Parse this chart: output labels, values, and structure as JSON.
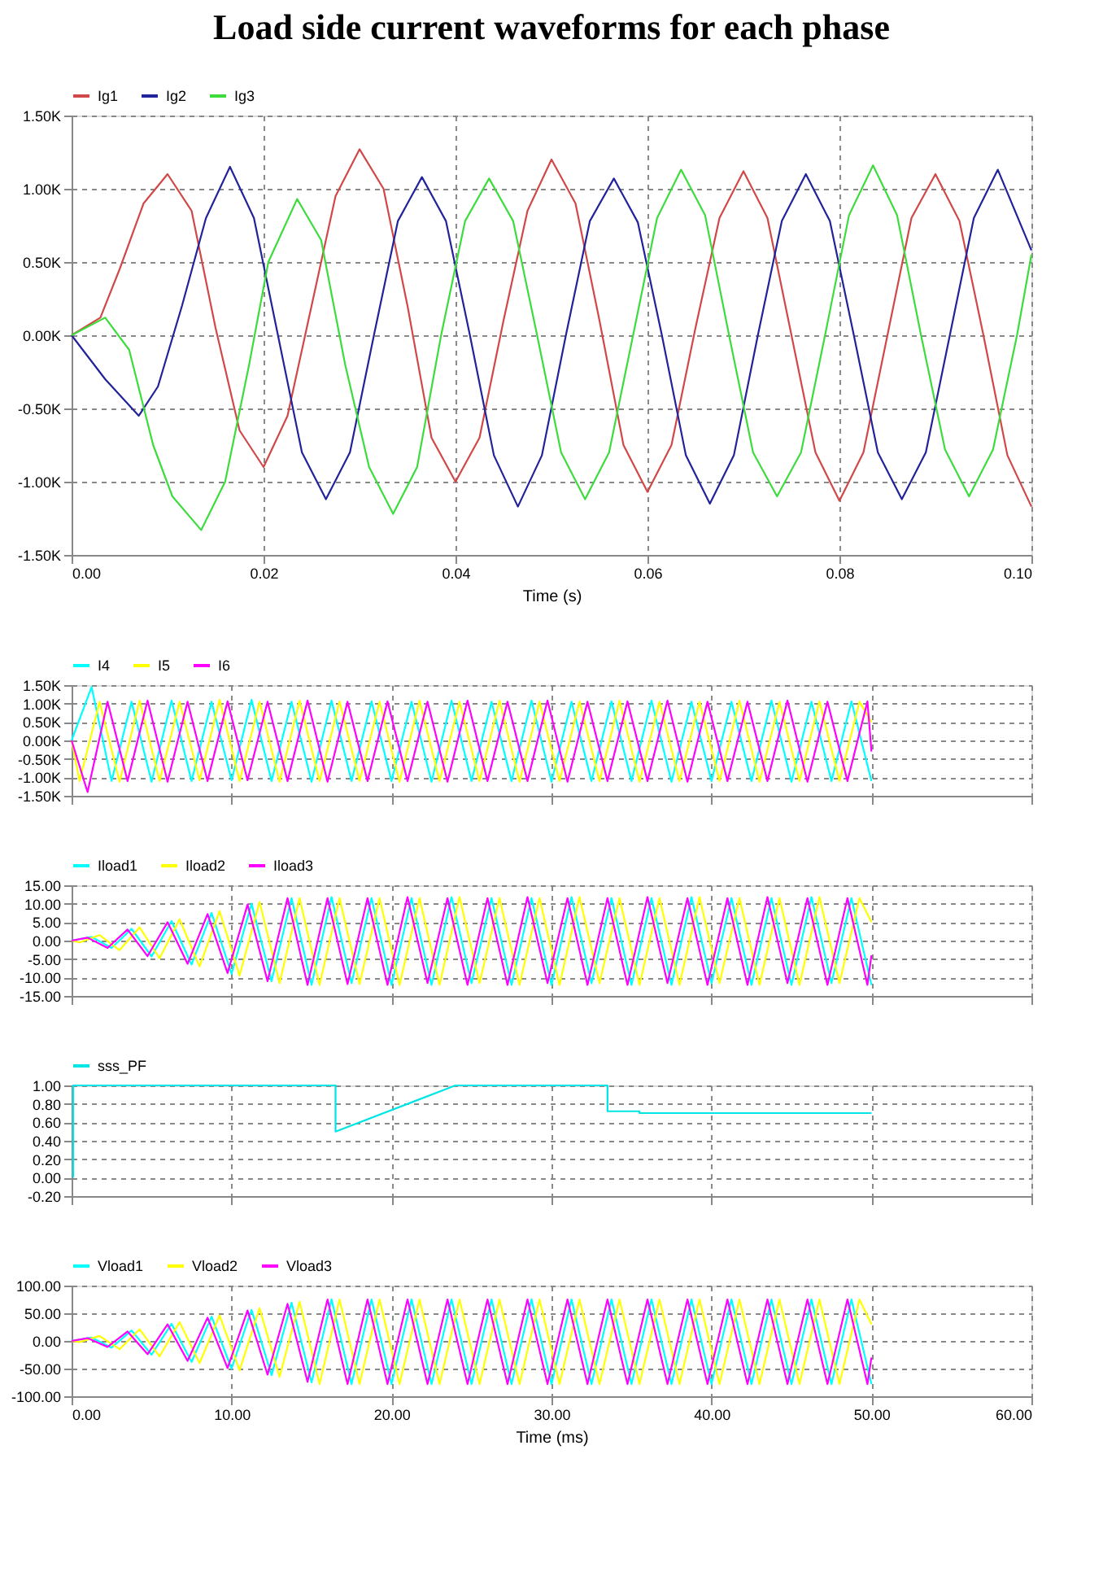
{
  "chart_data": [
    {
      "type": "line",
      "title": "Load side current waveforms for each phase",
      "xlabel": "Time (s)",
      "legend": "top left",
      "grid": true,
      "marker": "none",
      "line_style": "solid",
      "xlim": [
        0,
        0.1
      ],
      "xticks": [
        {
          "value": 0,
          "label": "0.00"
        },
        {
          "value": 0.02,
          "label": "0.02"
        },
        {
          "value": 0.04,
          "label": "0.04"
        },
        {
          "value": 0.06,
          "label": "0.06"
        },
        {
          "value": 0.08,
          "label": "0.08"
        },
        {
          "value": 0.1,
          "label": "0.10"
        }
      ],
      "ylim": [
        -1.5,
        1.5
      ],
      "yticks": [
        {
          "value": -1.5,
          "label": "-1.50K"
        },
        {
          "value": -1,
          "label": "-1.00K"
        },
        {
          "value": -0.5,
          "label": "-0.50K"
        },
        {
          "value": 0,
          "label": "0.00K"
        },
        {
          "value": 0.5,
          "label": "0.50K"
        },
        {
          "value": 1,
          "label": "1.00K"
        },
        {
          "value": 1.5,
          "label": "1.50K"
        }
      ],
      "series": [
        {
          "name": "Ig1",
          "color": "#d04848",
          "x": [
            0,
            0.003,
            0.005,
            0.0075,
            0.01,
            0.0125,
            0.015,
            0.0175,
            0.02,
            0.0225,
            0.025,
            0.0275,
            0.03,
            0.0325,
            0.035,
            0.0375,
            0.04,
            0.0425,
            0.045,
            0.0475,
            0.05,
            0.0525,
            0.055,
            0.0575,
            0.06,
            0.0625,
            0.065,
            0.0675,
            0.07,
            0.0725,
            0.075,
            0.0775,
            0.08,
            0.0825,
            0.085,
            0.0875,
            0.09,
            0.0925,
            0.095,
            0.0975,
            0.1
          ],
          "values": [
            0,
            0.12,
            0.45,
            0.9,
            1.1,
            0.85,
            0.05,
            -0.65,
            -0.9,
            -0.55,
            0.2,
            0.95,
            1.27,
            1.0,
            0.2,
            -0.7,
            -1.0,
            -0.7,
            0.1,
            0.85,
            1.2,
            0.9,
            0.1,
            -0.75,
            -1.07,
            -0.75,
            0.05,
            0.8,
            1.12,
            0.8,
            0.0,
            -0.8,
            -1.13,
            -0.8,
            0.0,
            0.8,
            1.1,
            0.78,
            0.0,
            -0.82,
            -1.17
          ]
        },
        {
          "name": "Ig2",
          "color": "#22229a",
          "x": [
            0,
            0.0035,
            0.007,
            0.009,
            0.0115,
            0.014,
            0.0165,
            0.019,
            0.0215,
            0.024,
            0.0265,
            0.029,
            0.0315,
            0.034,
            0.0365,
            0.039,
            0.0415,
            0.044,
            0.0465,
            0.049,
            0.0515,
            0.054,
            0.0565,
            0.059,
            0.0615,
            0.064,
            0.0665,
            0.069,
            0.0715,
            0.074,
            0.0765,
            0.079,
            0.0815,
            0.084,
            0.0865,
            0.089,
            0.0915,
            0.094,
            0.0965,
            0.1
          ],
          "values": [
            0,
            -0.3,
            -0.55,
            -0.35,
            0.2,
            0.8,
            1.15,
            0.8,
            0.0,
            -0.8,
            -1.12,
            -0.8,
            0.0,
            0.78,
            1.08,
            0.78,
            0.0,
            -0.82,
            -1.17,
            -0.82,
            0.0,
            0.78,
            1.07,
            0.77,
            0.0,
            -0.82,
            -1.15,
            -0.82,
            0.0,
            0.78,
            1.1,
            0.78,
            0.0,
            -0.8,
            -1.12,
            -0.8,
            0.0,
            0.8,
            1.13,
            0.58
          ]
        },
        {
          "name": "Ig3",
          "color": "#3ddc3d",
          "x": [
            0,
            0.0035,
            0.006,
            0.0085,
            0.0105,
            0.0135,
            0.016,
            0.0185,
            0.0205,
            0.0235,
            0.026,
            0.0285,
            0.031,
            0.0335,
            0.036,
            0.0385,
            0.041,
            0.0435,
            0.046,
            0.0485,
            0.051,
            0.0535,
            0.056,
            0.0585,
            0.061,
            0.0635,
            0.066,
            0.0685,
            0.071,
            0.0735,
            0.076,
            0.0785,
            0.081,
            0.0835,
            0.086,
            0.0885,
            0.091,
            0.0935,
            0.096,
            0.0985,
            0.1
          ],
          "values": [
            0,
            0.12,
            -0.1,
            -0.75,
            -1.1,
            -1.33,
            -1.0,
            -0.2,
            0.5,
            0.93,
            0.65,
            -0.2,
            -0.9,
            -1.22,
            -0.9,
            0.0,
            0.78,
            1.07,
            0.78,
            0.0,
            -0.8,
            -1.12,
            -0.8,
            0.0,
            0.8,
            1.13,
            0.82,
            0.0,
            -0.8,
            -1.1,
            -0.8,
            0.0,
            0.82,
            1.16,
            0.82,
            0.0,
            -0.78,
            -1.1,
            -0.78,
            0.0,
            0.55
          ]
        }
      ]
    },
    {
      "type": "line",
      "legend": "top left",
      "grid": true,
      "marker": "none",
      "line_style": "solid",
      "tick_labels": "y",
      "xlim": [
        0,
        60
      ],
      "xticks": [
        0,
        10,
        20,
        30,
        40,
        50,
        60
      ],
      "ylim": [
        -1.5,
        1.5
      ],
      "yticks": [
        {
          "value": -1.5,
          "label": "-1.50K"
        },
        {
          "value": -1,
          "label": "-1.00K"
        },
        {
          "value": -0.5,
          "label": "-0.50K"
        },
        {
          "value": 0,
          "label": "0.00K"
        },
        {
          "value": 0.5,
          "label": "0.50K"
        },
        {
          "value": 1,
          "label": "1.00K"
        },
        {
          "value": 1.5,
          "label": "1.50K"
        }
      ],
      "series": [
        {
          "name": "I4",
          "color": "#00ffff",
          "x": [
            0,
            1.25,
            2.5,
            3.75,
            5,
            6.25,
            7.5,
            8.75,
            10,
            11.25,
            12.5,
            13.75,
            15,
            16.25,
            17.5,
            18.75,
            20,
            21.25,
            22.5,
            23.75,
            25,
            26.25,
            27.5,
            28.75,
            30,
            31.25,
            32.5,
            33.75,
            35,
            36.25,
            37.5,
            38.75,
            40,
            41.25,
            42.5,
            43.75,
            45,
            46.25,
            47.5,
            48.75,
            50
          ],
          "values": [
            0,
            1.45,
            -1.1,
            1.05,
            -1.12,
            1.08,
            -1.1,
            1.05,
            -1.08,
            1.1,
            -1.1,
            1.05,
            -1.12,
            1.08,
            -1.1,
            1.06,
            -1.1,
            1.05,
            -1.12,
            1.08,
            -1.1,
            1.05,
            -1.1,
            1.08,
            -1.12,
            1.05,
            -1.1,
            1.06,
            -1.1,
            1.08,
            -1.12,
            1.05,
            -1.1,
            1.05,
            -1.1,
            1.08,
            -1.12,
            1.05,
            -1.1,
            1.06,
            -1.1
          ]
        },
        {
          "name": "I5",
          "color": "#ffff00",
          "x": [
            0,
            0.5,
            1.75,
            3,
            4.25,
            5.5,
            6.75,
            8,
            9.25,
            10.5,
            11.75,
            13,
            14.25,
            15.5,
            16.75,
            18,
            19.25,
            20.5,
            21.75,
            23,
            24.25,
            25.5,
            26.75,
            28,
            29.25,
            30.5,
            31.75,
            33,
            34.25,
            35.5,
            36.75,
            38,
            39.25,
            40.5,
            41.75,
            43,
            44.25,
            45.5,
            46.75,
            48,
            49.25,
            50
          ],
          "values": [
            0,
            -1.1,
            1.05,
            -1.12,
            1.08,
            -1.1,
            1.05,
            -1.08,
            1.1,
            -1.1,
            1.05,
            -1.12,
            1.08,
            -1.1,
            1.06,
            -1.1,
            1.05,
            -1.12,
            1.08,
            -1.1,
            1.05,
            -1.1,
            1.08,
            -1.12,
            1.05,
            -1.1,
            1.06,
            -1.1,
            1.08,
            -1.12,
            1.05,
            -1.1,
            1.05,
            -1.1,
            1.08,
            -1.12,
            1.05,
            -1.1,
            1.06,
            -1.1,
            1.05,
            0.5
          ]
        },
        {
          "name": "I6",
          "color": "#ff00ff",
          "x": [
            0,
            1,
            2.25,
            3.5,
            4.75,
            6,
            7.25,
            8.5,
            9.75,
            11,
            12.25,
            13.5,
            14.75,
            16,
            17.25,
            18.5,
            19.75,
            21,
            22.25,
            23.5,
            24.75,
            26,
            27.25,
            28.5,
            29.75,
            31,
            32.25,
            33.5,
            34.75,
            36,
            37.25,
            38.5,
            39.75,
            41,
            42.25,
            43.5,
            44.75,
            46,
            47.25,
            48.5,
            49.75,
            50
          ],
          "values": [
            0,
            -1.4,
            1.05,
            -1.1,
            1.08,
            -1.12,
            1.05,
            -1.1,
            1.06,
            -1.08,
            1.05,
            -1.1,
            1.08,
            -1.12,
            1.05,
            -1.1,
            1.06,
            -1.1,
            1.05,
            -1.12,
            1.08,
            -1.1,
            1.05,
            -1.1,
            1.08,
            -1.12,
            1.05,
            -1.1,
            1.06,
            -1.1,
            1.08,
            -1.12,
            1.05,
            -1.1,
            1.05,
            -1.1,
            1.08,
            -1.12,
            1.05,
            -1.1,
            1.06,
            -0.3
          ]
        }
      ]
    },
    {
      "type": "line",
      "legend": "top left",
      "grid": true,
      "marker": "none",
      "line_style": "solid",
      "tick_labels": "y",
      "xlim": [
        0,
        60
      ],
      "xticks": [
        0,
        10,
        20,
        30,
        40,
        50,
        60
      ],
      "ylim": [
        -15,
        15
      ],
      "yticks": [
        {
          "value": -15,
          "label": "-15.00"
        },
        {
          "value": -10,
          "label": "-10.00"
        },
        {
          "value": -5,
          "label": "-5.00"
        },
        {
          "value": 0,
          "label": "0.00"
        },
        {
          "value": 5,
          "label": "5.00"
        },
        {
          "value": 10,
          "label": "10.00"
        },
        {
          "value": 15,
          "label": "15.00"
        }
      ],
      "series": [
        {
          "name": "Iload1",
          "color": "#00ffff",
          "x": [
            0,
            1.25,
            2.5,
            3.75,
            5,
            6.25,
            7.5,
            8.75,
            10,
            11.25,
            12.5,
            13.75,
            15,
            16.25,
            17.5,
            18.75,
            20,
            21.25,
            22.5,
            23.75,
            25,
            26.25,
            27.5,
            28.75,
            30,
            31.25,
            32.5,
            33.75,
            35,
            36.25,
            37.5,
            38.75,
            40,
            41.25,
            42.5,
            43.75,
            45,
            46.25,
            47.5,
            48.75,
            50
          ],
          "values": [
            0,
            1,
            -2,
            3.2,
            -4.3,
            5.3,
            -6.5,
            7.5,
            -9,
            10,
            -11,
            11.5,
            -12,
            11.8,
            -11.5,
            11.5,
            -12,
            11.5,
            -12,
            11.8,
            -11.5,
            11.5,
            -12,
            11.5,
            -12,
            11.8,
            -11.5,
            11.5,
            -12,
            11.5,
            -12,
            11.8,
            -11.5,
            11.5,
            -12,
            11.5,
            -12,
            11.8,
            -11.5,
            11.5,
            -12
          ]
        },
        {
          "name": "Iload2",
          "color": "#ffff00",
          "x": [
            0,
            0.5,
            1.75,
            3,
            4.25,
            5.5,
            6.75,
            8,
            9.25,
            10.5,
            11.75,
            13,
            14.25,
            15.5,
            16.75,
            18,
            19.25,
            20.5,
            21.75,
            23,
            24.25,
            25.5,
            26.75,
            28,
            29.25,
            30.5,
            31.75,
            33,
            34.25,
            35.5,
            36.75,
            38,
            39.25,
            40.5,
            41.75,
            43,
            44.25,
            45.5,
            46.75,
            48,
            49.25,
            50
          ],
          "values": [
            0,
            -0.5,
            1.5,
            -2.6,
            3.6,
            -4.8,
            5.8,
            -7,
            8,
            -9.5,
            10.5,
            -11.5,
            11.5,
            -12,
            11.5,
            -11.8,
            11.5,
            -12,
            11.5,
            -12,
            11.8,
            -11.5,
            11.5,
            -12,
            11.5,
            -12,
            11.8,
            -11.5,
            11.5,
            -12,
            11.5,
            -12,
            11.8,
            -11.5,
            11.5,
            -12,
            11.5,
            -12,
            11.8,
            -11.5,
            11.5,
            5
          ]
        },
        {
          "name": "Iload3",
          "color": "#ff00ff",
          "x": [
            0,
            1,
            2.25,
            3.5,
            4.75,
            6,
            7.25,
            8.5,
            9.75,
            11,
            12.25,
            13.5,
            14.75,
            16,
            17.25,
            18.5,
            19.75,
            21,
            22.25,
            23.5,
            24.75,
            26,
            27.25,
            28.5,
            29.75,
            31,
            32.25,
            33.5,
            34.75,
            36,
            37.25,
            38.5,
            39.75,
            41,
            42.25,
            43.5,
            44.75,
            46,
            47.25,
            48.5,
            49.75,
            50
          ],
          "values": [
            0,
            0.8,
            -2,
            3,
            -4.2,
            5,
            -6.3,
            7.2,
            -8.8,
            9.8,
            -11,
            11.5,
            -12,
            11.5,
            -11.8,
            11.5,
            -12,
            11.8,
            -11.5,
            11.5,
            -12,
            11.5,
            -12,
            11.8,
            -11.5,
            11.5,
            -12,
            11.5,
            -12,
            11.8,
            -11.5,
            11.5,
            -12,
            11.5,
            -12,
            11.8,
            -11.5,
            11.5,
            -12,
            11.5,
            -12,
            -4
          ]
        }
      ]
    },
    {
      "type": "line",
      "legend": "top left",
      "grid": true,
      "marker": "none",
      "line_style": "solid",
      "tick_labels": "y",
      "xlim": [
        0,
        60
      ],
      "xticks": [
        0,
        10,
        20,
        30,
        40,
        50,
        60
      ],
      "ylim": [
        -0.2,
        1
      ],
      "yticks": [
        {
          "value": -0.2,
          "label": "-0.20"
        },
        {
          "value": 0,
          "label": "0.00"
        },
        {
          "value": 0.2,
          "label": "0.20"
        },
        {
          "value": 0.4,
          "label": "0.40"
        },
        {
          "value": 0.6,
          "label": "0.60"
        },
        {
          "value": 0.8,
          "label": "0.80"
        },
        {
          "value": 1,
          "label": "1.00"
        }
      ],
      "series": [
        {
          "name": "sss_PF",
          "color": "#00e5e5",
          "x": [
            0.1,
            0.1,
            16.5,
            16.5,
            24,
            33.5,
            33.5,
            35.5,
            35.5,
            50
          ],
          "values": [
            0,
            1,
            1,
            0.5,
            1,
            1,
            0.72,
            0.72,
            0.7,
            0.7
          ]
        }
      ]
    },
    {
      "type": "line",
      "xlabel": "Time (ms)",
      "legend": "top left",
      "grid": true,
      "marker": "none",
      "line_style": "solid",
      "xlim": [
        0,
        60
      ],
      "xticks": [
        {
          "value": 0,
          "label": "0.00"
        },
        {
          "value": 10,
          "label": "10.00"
        },
        {
          "value": 20,
          "label": "20.00"
        },
        {
          "value": 30,
          "label": "30.00"
        },
        {
          "value": 40,
          "label": "40.00"
        },
        {
          "value": 50,
          "label": "50.00"
        },
        {
          "value": 60,
          "label": "60.00"
        }
      ],
      "ylim": [
        -100,
        100
      ],
      "yticks": [
        {
          "value": -100,
          "label": "-100.00"
        },
        {
          "value": -50,
          "label": "-50.00"
        },
        {
          "value": 0,
          "label": "0.00"
        },
        {
          "value": 50,
          "label": "50.00"
        },
        {
          "value": 100,
          "label": "100.00"
        }
      ],
      "series": [
        {
          "name": "Vload1",
          "color": "#00ffff",
          "x": [
            0,
            1.25,
            2.5,
            3.75,
            5,
            6.25,
            7.5,
            8.75,
            10,
            11.25,
            12.5,
            13.75,
            15,
            16.25,
            17.5,
            18.75,
            20,
            21.25,
            22.5,
            23.75,
            25,
            26.25,
            27.5,
            28.75,
            30,
            31.25,
            32.5,
            33.75,
            35,
            36.25,
            37.5,
            38.75,
            40,
            41.25,
            42.5,
            43.75,
            45,
            46.25,
            47.5,
            48.75,
            50
          ],
          "values": [
            0,
            6,
            -12,
            19,
            -25,
            31,
            -38,
            44,
            -50,
            56,
            -62,
            69,
            -75,
            75,
            -78,
            75,
            -78,
            75,
            -78,
            75,
            -78,
            75,
            -78,
            75,
            -78,
            75,
            -78,
            75,
            -78,
            75,
            -78,
            75,
            -78,
            75,
            -78,
            75,
            -78,
            75,
            -78,
            75,
            -78
          ]
        },
        {
          "name": "Vload2",
          "color": "#ffff00",
          "x": [
            0,
            0.5,
            1.75,
            3,
            4.25,
            5.5,
            6.75,
            8,
            9.25,
            10.5,
            11.75,
            13,
            14.25,
            15.5,
            16.75,
            18,
            19.25,
            20.5,
            21.75,
            23,
            24.25,
            25.5,
            26.75,
            28,
            29.25,
            30.5,
            31.75,
            33,
            34.25,
            35.5,
            36.75,
            38,
            39.25,
            40.5,
            41.75,
            43,
            44.25,
            45.5,
            46.75,
            48,
            49.25,
            50
          ],
          "values": [
            0,
            -2,
            9,
            -15,
            21,
            -28,
            34,
            -40,
            46,
            -53,
            59,
            -65,
            71,
            -78,
            75,
            -78,
            75,
            -78,
            75,
            -78,
            75,
            -78,
            75,
            -78,
            75,
            -78,
            75,
            -78,
            75,
            -78,
            75,
            -78,
            75,
            -78,
            75,
            -78,
            75,
            -78,
            75,
            -78,
            75,
            30
          ]
        },
        {
          "name": "Vload3",
          "color": "#ff00ff",
          "x": [
            0,
            1,
            2.25,
            3.5,
            4.75,
            6,
            7.25,
            8.5,
            9.75,
            11,
            12.25,
            13.5,
            14.75,
            16,
            17.25,
            18.5,
            19.75,
            21,
            22.25,
            23.5,
            24.75,
            26,
            27.25,
            28.5,
            29.75,
            31,
            32.25,
            33.5,
            34.75,
            36,
            37.25,
            38.5,
            39.75,
            41,
            42.25,
            43.5,
            44.75,
            46,
            47.25,
            48.5,
            49.75,
            50
          ],
          "values": [
            0,
            5,
            -11,
            17,
            -24,
            30,
            -36,
            42,
            -49,
            55,
            -61,
            67,
            -74,
            75,
            -78,
            75,
            -78,
            75,
            -78,
            75,
            -78,
            75,
            -78,
            75,
            -78,
            75,
            -78,
            75,
            -78,
            75,
            -78,
            75,
            -78,
            75,
            -78,
            75,
            -78,
            75,
            -78,
            75,
            -78,
            -30
          ]
        }
      ]
    }
  ]
}
